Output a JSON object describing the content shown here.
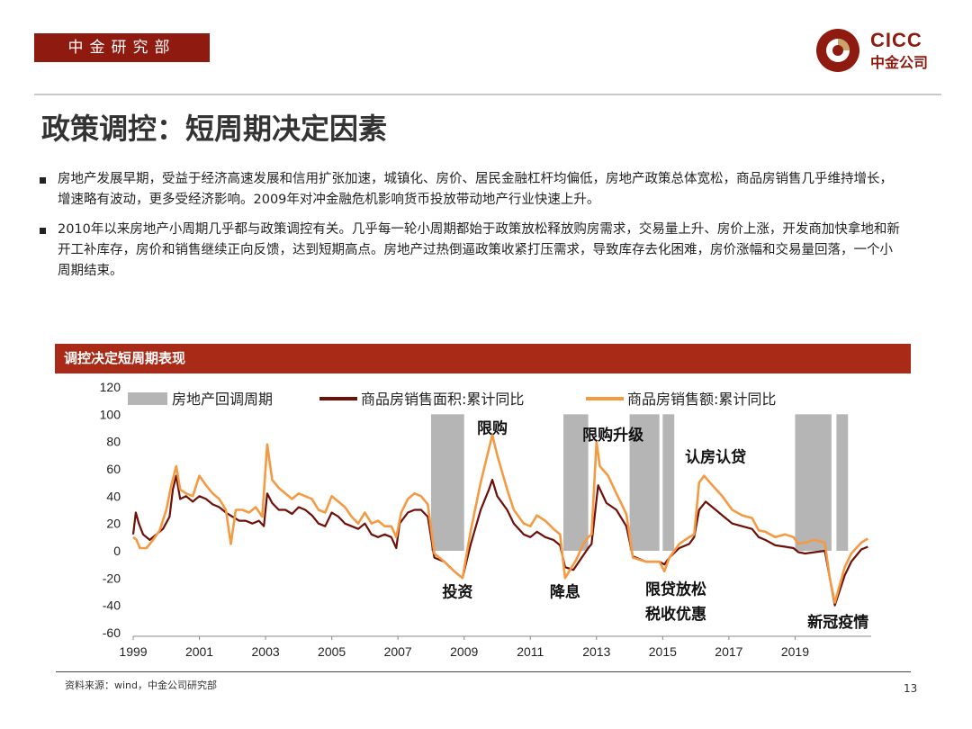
{
  "header": {
    "department": "中金研究部",
    "logo_en": "CICC",
    "logo_cn": "中金公司"
  },
  "title": "政策调控：短周期决定因素",
  "bullets": [
    "房地产发展早期，受益于经济高速发展和信用扩张加速，城镇化、房价、居民金融杠杆均偏低，房地产政策总体宽松，商品房销售几乎维持增长，增速略有波动，更多受经济影响。2009年对冲金融危机影响货币投放带动地产行业快速上升。",
    "2010年以来房地产小周期几乎都与政策调控有关。几乎每一轮小周期都始于政策放松释放购房需求，交易量上升、房价上涨，开发商加快拿地和新开工补库存，房价和销售继续正向反馈，达到短期高点。房地产过热倒逼政策收紧打压需求，导致库存去化困难，房价涨幅和交易量回落，一个小周期结束。"
  ],
  "chart_title": "调控决定短周期表现",
  "footer": {
    "source": "资料来源：wind，中金公司研究部",
    "page": "13"
  },
  "colors": {
    "brand": "#8e1a10",
    "header_bar": "#a82a17",
    "area_series": "#d66a15",
    "amount_series": "#f39a43",
    "shade": "#b5b5b5"
  },
  "chart_data": {
    "type": "line",
    "xlim": [
      1999,
      2021.3
    ],
    "ylim": [
      -60,
      120
    ],
    "yticks": [
      120,
      100,
      80,
      60,
      40,
      20,
      0,
      -20,
      -40,
      -60
    ],
    "xticks": [
      1999,
      2001,
      2003,
      2005,
      2007,
      2009,
      2011,
      2013,
      2015,
      2017,
      2019
    ],
    "legend": [
      "房地产回调周期",
      "商品房销售面积:累计同比",
      "商品房销售额:累计同比"
    ],
    "legend_position": "top",
    "shaded_periods": [
      [
        2008.0,
        2009.0
      ],
      [
        2012.0,
        2012.75
      ],
      [
        2014.0,
        2014.9
      ],
      [
        2015.0,
        2015.35
      ],
      [
        2019.0,
        2020.1
      ],
      [
        2020.25,
        2020.6
      ]
    ],
    "series": [
      {
        "name": "商品房销售面积:累计同比",
        "points": [
          [
            1999.0,
            12
          ],
          [
            1999.08,
            28
          ],
          [
            1999.17,
            20
          ],
          [
            1999.3,
            12
          ],
          [
            1999.5,
            8
          ],
          [
            1999.7,
            12
          ],
          [
            1999.9,
            16
          ],
          [
            2000.1,
            25
          ],
          [
            2000.2,
            45
          ],
          [
            2000.3,
            55
          ],
          [
            2000.42,
            38
          ],
          [
            2000.6,
            40
          ],
          [
            2000.8,
            36
          ],
          [
            2001.0,
            40
          ],
          [
            2001.2,
            38
          ],
          [
            2001.4,
            34
          ],
          [
            2001.6,
            32
          ],
          [
            2001.8,
            28
          ],
          [
            2002.0,
            25
          ],
          [
            2002.2,
            22
          ],
          [
            2002.4,
            22
          ],
          [
            2002.6,
            20
          ],
          [
            2002.8,
            22
          ],
          [
            2002.95,
            18
          ],
          [
            2003.05,
            42
          ],
          [
            2003.2,
            35
          ],
          [
            2003.4,
            30
          ],
          [
            2003.6,
            30
          ],
          [
            2003.8,
            27
          ],
          [
            2004.0,
            32
          ],
          [
            2004.2,
            30
          ],
          [
            2004.4,
            26
          ],
          [
            2004.6,
            20
          ],
          [
            2004.8,
            18
          ],
          [
            2005.0,
            28
          ],
          [
            2005.2,
            25
          ],
          [
            2005.4,
            20
          ],
          [
            2005.6,
            18
          ],
          [
            2005.8,
            16
          ],
          [
            2006.0,
            20
          ],
          [
            2006.2,
            12
          ],
          [
            2006.4,
            10
          ],
          [
            2006.6,
            12
          ],
          [
            2006.8,
            10
          ],
          [
            2006.95,
            2
          ],
          [
            2007.05,
            20
          ],
          [
            2007.3,
            28
          ],
          [
            2007.5,
            30
          ],
          [
            2007.7,
            30
          ],
          [
            2007.9,
            25
          ],
          [
            2008.1,
            -5
          ],
          [
            2008.4,
            -8
          ],
          [
            2008.7,
            -15
          ],
          [
            2008.95,
            -20
          ],
          [
            2009.2,
            5
          ],
          [
            2009.5,
            30
          ],
          [
            2009.75,
            45
          ],
          [
            2009.85,
            52
          ],
          [
            2010.0,
            40
          ],
          [
            2010.3,
            30
          ],
          [
            2010.5,
            20
          ],
          [
            2010.8,
            12
          ],
          [
            2011.0,
            10
          ],
          [
            2011.2,
            14
          ],
          [
            2011.45,
            10
          ],
          [
            2011.7,
            8
          ],
          [
            2011.9,
            4
          ],
          [
            2012.05,
            -12
          ],
          [
            2012.3,
            -14
          ],
          [
            2012.55,
            -5
          ],
          [
            2012.75,
            2
          ],
          [
            2012.85,
            5
          ],
          [
            2013.05,
            48
          ],
          [
            2013.3,
            35
          ],
          [
            2013.6,
            30
          ],
          [
            2013.9,
            18
          ],
          [
            2014.1,
            -4
          ],
          [
            2014.5,
            -8
          ],
          [
            2014.9,
            -8
          ],
          [
            2015.05,
            -10
          ],
          [
            2015.2,
            -5
          ],
          [
            2015.5,
            2
          ],
          [
            2015.8,
            5
          ],
          [
            2015.95,
            10
          ],
          [
            2016.1,
            30
          ],
          [
            2016.3,
            36
          ],
          [
            2016.6,
            30
          ],
          [
            2016.9,
            24
          ],
          [
            2017.1,
            20
          ],
          [
            2017.4,
            18
          ],
          [
            2017.7,
            16
          ],
          [
            2017.9,
            10
          ],
          [
            2018.1,
            8
          ],
          [
            2018.4,
            4
          ],
          [
            2018.7,
            3
          ],
          [
            2018.95,
            2
          ],
          [
            2019.1,
            -1
          ],
          [
            2019.3,
            -2
          ],
          [
            2019.6,
            -1
          ],
          [
            2019.9,
            0
          ],
          [
            2020.05,
            -20
          ],
          [
            2020.2,
            -40
          ],
          [
            2020.5,
            -18
          ],
          [
            2020.7,
            -8
          ],
          [
            2021.0,
            1
          ],
          [
            2021.2,
            3
          ]
        ]
      },
      {
        "name": "商品房销售额:累计同比",
        "points": [
          [
            1999.0,
            10
          ],
          [
            1999.1,
            8
          ],
          [
            1999.2,
            2
          ],
          [
            1999.4,
            2
          ],
          [
            1999.6,
            8
          ],
          [
            1999.8,
            15
          ],
          [
            2000.0,
            30
          ],
          [
            2000.15,
            48
          ],
          [
            2000.3,
            62
          ],
          [
            2000.42,
            45
          ],
          [
            2000.6,
            42
          ],
          [
            2000.8,
            40
          ],
          [
            2001.0,
            55
          ],
          [
            2001.2,
            48
          ],
          [
            2001.4,
            42
          ],
          [
            2001.6,
            38
          ],
          [
            2001.8,
            30
          ],
          [
            2001.95,
            5
          ],
          [
            2002.1,
            30
          ],
          [
            2002.3,
            30
          ],
          [
            2002.5,
            28
          ],
          [
            2002.7,
            32
          ],
          [
            2002.9,
            25
          ],
          [
            2003.05,
            78
          ],
          [
            2003.2,
            52
          ],
          [
            2003.4,
            46
          ],
          [
            2003.6,
            42
          ],
          [
            2003.8,
            38
          ],
          [
            2004.0,
            42
          ],
          [
            2004.2,
            40
          ],
          [
            2004.4,
            38
          ],
          [
            2004.6,
            30
          ],
          [
            2004.8,
            28
          ],
          [
            2005.0,
            40
          ],
          [
            2005.2,
            36
          ],
          [
            2005.4,
            32
          ],
          [
            2005.6,
            25
          ],
          [
            2005.8,
            20
          ],
          [
            2006.0,
            28
          ],
          [
            2006.2,
            20
          ],
          [
            2006.4,
            22
          ],
          [
            2006.6,
            18
          ],
          [
            2006.8,
            18
          ],
          [
            2006.95,
            10
          ],
          [
            2007.1,
            28
          ],
          [
            2007.3,
            38
          ],
          [
            2007.5,
            42
          ],
          [
            2007.7,
            40
          ],
          [
            2007.9,
            34
          ],
          [
            2008.1,
            -2
          ],
          [
            2008.4,
            -8
          ],
          [
            2008.7,
            -15
          ],
          [
            2008.95,
            -20
          ],
          [
            2009.2,
            15
          ],
          [
            2009.5,
            50
          ],
          [
            2009.7,
            70
          ],
          [
            2009.85,
            85
          ],
          [
            2010.0,
            70
          ],
          [
            2010.3,
            45
          ],
          [
            2010.5,
            30
          ],
          [
            2010.8,
            20
          ],
          [
            2011.0,
            18
          ],
          [
            2011.2,
            26
          ],
          [
            2011.45,
            22
          ],
          [
            2011.7,
            16
          ],
          [
            2011.9,
            12
          ],
          [
            2012.05,
            -20
          ],
          [
            2012.2,
            -14
          ],
          [
            2012.4,
            -6
          ],
          [
            2012.6,
            5
          ],
          [
            2012.75,
            10
          ],
          [
            2012.85,
            12
          ],
          [
            2013.0,
            80
          ],
          [
            2013.1,
            62
          ],
          [
            2013.35,
            55
          ],
          [
            2013.6,
            42
          ],
          [
            2013.9,
            27
          ],
          [
            2014.1,
            -5
          ],
          [
            2014.5,
            -8
          ],
          [
            2014.9,
            -8
          ],
          [
            2015.05,
            -15
          ],
          [
            2015.2,
            -5
          ],
          [
            2015.5,
            5
          ],
          [
            2015.8,
            10
          ],
          [
            2015.95,
            12
          ],
          [
            2016.1,
            50
          ],
          [
            2016.25,
            55
          ],
          [
            2016.5,
            48
          ],
          [
            2016.8,
            40
          ],
          [
            2017.1,
            30
          ],
          [
            2017.4,
            26
          ],
          [
            2017.7,
            24
          ],
          [
            2017.9,
            15
          ],
          [
            2018.1,
            14
          ],
          [
            2018.4,
            10
          ],
          [
            2018.7,
            12
          ],
          [
            2018.95,
            10
          ],
          [
            2019.1,
            5
          ],
          [
            2019.3,
            6
          ],
          [
            2019.6,
            8
          ],
          [
            2019.9,
            6
          ],
          [
            2020.05,
            -20
          ],
          [
            2020.2,
            -38
          ],
          [
            2020.5,
            -12
          ],
          [
            2020.7,
            -2
          ],
          [
            2021.0,
            6
          ],
          [
            2021.2,
            9
          ]
        ]
      }
    ],
    "annotations": [
      {
        "text": "限购",
        "x": 2009.85,
        "y": 86
      },
      {
        "text": "限购升级",
        "x": 2013.5,
        "y": 81
      },
      {
        "text": "认房认贷",
        "x": 2016.6,
        "y": 65
      },
      {
        "text": "投资",
        "x": 2008.8,
        "y": -34
      },
      {
        "text": "降息",
        "x": 2012.05,
        "y": -34
      },
      {
        "text": "限贷放松",
        "x": 2015.4,
        "y": -32
      },
      {
        "text": "税收优惠",
        "x": 2015.4,
        "y": -50
      },
      {
        "text": "新冠疫情",
        "x": 2020.3,
        "y": -56
      }
    ]
  }
}
